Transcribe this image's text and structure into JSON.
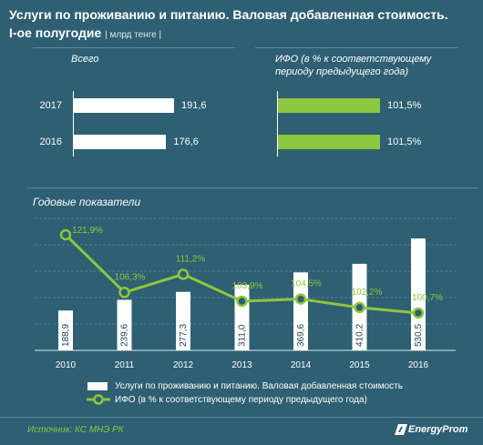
{
  "title": {
    "line1": "Услуги по проживанию и питанию. Валовая добавленная стоимость.",
    "line2": "I-ое полугодие",
    "unit": "| млрд тенге |"
  },
  "colors": {
    "background": "#2e5f72",
    "bars": "#ffffff",
    "accent": "#8dc63f"
  },
  "top_left": {
    "label": "Всего"
  },
  "top_right": {
    "label_line1": "ИФО (в % к соответствующему",
    "label_line2": "периоду предыдущего года)"
  },
  "annual_title": "Годовые показатели",
  "legend": {
    "bars": "Услуги по проживанию и питанию. Валовая добавленная стоимость",
    "line": "ИФО (в % к соответствующему периоду предыдущего года)"
  },
  "footer": {
    "source": "Источник: КС МНЭ РК",
    "brand": "EnergyProm",
    "brand_icon": "energyprom-logo-icon"
  },
  "chart_data": [
    {
      "type": "bar",
      "orientation": "horizontal",
      "title": "Всего",
      "categories": [
        "2017",
        "2016"
      ],
      "values": [
        191.6,
        176.6
      ],
      "labels": [
        "191,6",
        "176,6"
      ]
    },
    {
      "type": "bar",
      "orientation": "horizontal",
      "title": "ИФО (в % к соответствующему периоду предыдущего года)",
      "categories": [
        "2017",
        "2016"
      ],
      "values": [
        101.5,
        101.5
      ],
      "labels": [
        "101,5%",
        "101,5%"
      ]
    },
    {
      "type": "bar+line",
      "title": "Годовые показатели",
      "categories": [
        "2010",
        "2011",
        "2012",
        "2013",
        "2014",
        "2015",
        "2016"
      ],
      "series": [
        {
          "name": "Услуги по проживанию и питанию. Валовая добавленная стоимость",
          "type": "bar",
          "values": [
            188.9,
            239.6,
            277.3,
            311.0,
            369.6,
            410.2,
            530.5
          ],
          "labels": [
            "188,9",
            "239,6",
            "277,3",
            "311,0",
            "369,6",
            "410,2",
            "530,5"
          ]
        },
        {
          "name": "ИФО (в % к соответствующему периоду предыдущего года)",
          "type": "line",
          "values": [
            121.9,
            106.3,
            111.2,
            103.9,
            104.5,
            102.2,
            100.7
          ],
          "labels": [
            "121,9%",
            "106,3%",
            "111,2%",
            "103,9%",
            "104,5%",
            "102,2%",
            "100,7%"
          ]
        }
      ],
      "grid": true,
      "legend_position": "bottom"
    }
  ]
}
